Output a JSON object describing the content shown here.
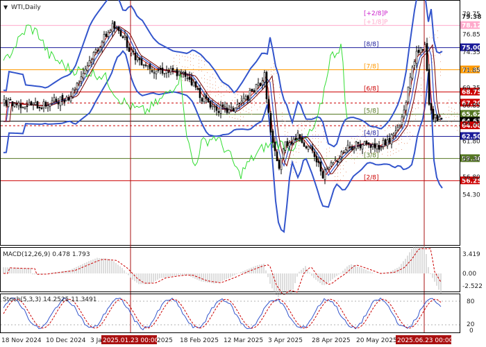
{
  "header": {
    "symbol_label": "WTI,Daily",
    "arrow_glyph": "▼"
  },
  "colors": {
    "background": "#ffffff",
    "bull_candle": "#ffffff",
    "bear_candle": "#000000",
    "bollinger": "#3355cc",
    "ma_fast": "#cc1111",
    "ma_slow": "#770000",
    "chikou": "#33dd33",
    "kumo": "#e8a080",
    "blue_line": "#1a1a99",
    "red_line": "#cc0000",
    "orange_line": "#ff9900",
    "green_line": "#557722",
    "pink_line": "#ffaacc",
    "purple_line": "#cc22cc",
    "vline": "#aa1111"
  },
  "main_pane": {
    "price_scale": [
      "79.75",
      "76.85",
      "74.35",
      "71.85",
      "69.35",
      "66.85",
      "64.35",
      "61.80",
      "59.30",
      "56.80",
      "54.30"
    ],
    "murrey_levels": [
      {
        "label": "[+2/8]P",
        "price": "79.38",
        "color": "#cc22cc",
        "badge_text": "79.38",
        "badge_color": "#ffffff"
      },
      {
        "label": "[+1/8]P",
        "price": "78.12",
        "color": "#ffaacc",
        "badge_text": "78.12",
        "badge_color": "#ffaacc"
      },
      {
        "label": "[8/8]",
        "price": "75.00",
        "color": "#1a1a99",
        "badge_text": "75.00",
        "badge_color": "#1a1a99"
      },
      {
        "label": "[7/8]",
        "price": "71.88",
        "color": "#ff9900",
        "badge_text": "71.88",
        "badge_color": "#ff9900"
      },
      {
        "label": "[6/8]",
        "price": "68.75",
        "color": "#cc0000",
        "badge_text": "68.75",
        "badge_color": "#cc0000"
      },
      {
        "label": "",
        "price": "67.20",
        "color": "#cc0000",
        "badge_text": "67.20",
        "badge_color": "#cc0000",
        "dashed": true
      },
      {
        "label": "[5/8]",
        "price": "65.62",
        "color": "#557722",
        "badge_text": "65.62",
        "badge_color": "#557722"
      },
      {
        "label": "",
        "price": "64.63",
        "color": "#000000",
        "badge_text": "64.63",
        "badge_color": "#000000"
      },
      {
        "label": "",
        "price": "64.00",
        "color": "#cc0000",
        "badge_text": "64.00",
        "badge_color": "#cc0000",
        "dashed": true
      },
      {
        "label": "[4/8]",
        "price": "62.50",
        "color": "#1a1a99",
        "badge_text": "62.50",
        "badge_color": "#1a1a99"
      },
      {
        "label": "[3/8]",
        "price": "59.38",
        "color": "#557722",
        "badge_text": "59.38",
        "badge_color": "#557722"
      },
      {
        "label": "[2/8]",
        "price": "56.25",
        "color": "#cc0000",
        "badge_text": "56.25",
        "badge_color": "#cc0000"
      }
    ]
  },
  "macd_pane": {
    "label": "MACD(12,26,9) 0.478 1.793",
    "scale": [
      "3.419",
      "0.00",
      "-2.522"
    ]
  },
  "stoch_pane": {
    "label": "Stoch(5,3,3) 14.2525 11.3491",
    "scale": [
      "80",
      "20",
      "0"
    ]
  },
  "time_axis": {
    "labels": [
      "18 Nov 2024",
      "10 Dec 2024",
      "3 Ja",
      "18 Feb 2025",
      "12 Mar 2025",
      "3 Apr 2025",
      "28 Apr 2025",
      "20 May 2025"
    ],
    "highlight_1": "2025.01.23 00:00",
    "highlight_1_tail": "2025",
    "highlight_2": "2025.06.23 00:00"
  }
}
